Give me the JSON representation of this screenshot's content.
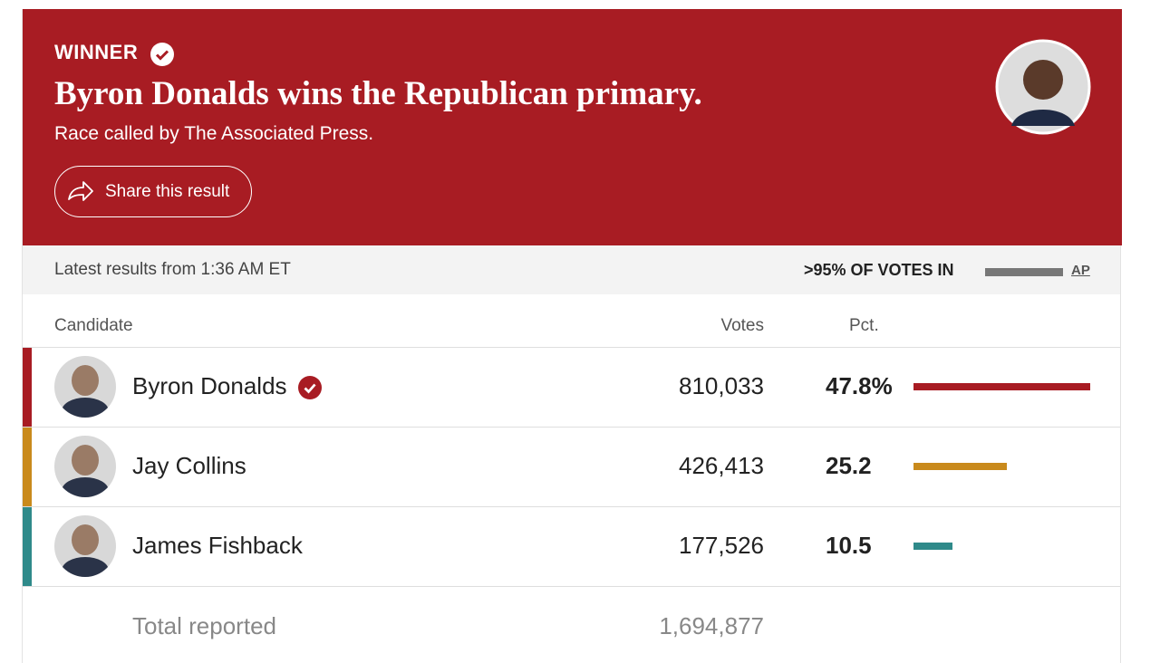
{
  "banner": {
    "label": "WINNER",
    "title": "Byron Donalds wins the Republican primary.",
    "subtitle": "Race called by The Associated Press.",
    "share_button": "Share this result"
  },
  "status": {
    "updated": "Latest results from 1:36 AM ET",
    "reporting": ">95% OF VOTES IN",
    "source": "AP"
  },
  "table": {
    "headers": [
      "Candidate",
      "Votes",
      "Pct."
    ],
    "rows": [
      {
        "name": "Byron Donalds",
        "winner": true,
        "votes": "810,033",
        "pct": 47.8,
        "pct_label": "47.8%",
        "color": "#a81c23"
      },
      {
        "name": "Jay Collins",
        "winner": false,
        "votes": "426,413",
        "pct": 25.2,
        "color": "#c98a1c"
      },
      {
        "name": "James Fishback",
        "winner": false,
        "votes": "177,526",
        "pct": 10.5,
        "color": "#2f8a8a"
      }
    ],
    "total": {
      "label": "Total reported",
      "votes": "1,694,877"
    }
  }
}
